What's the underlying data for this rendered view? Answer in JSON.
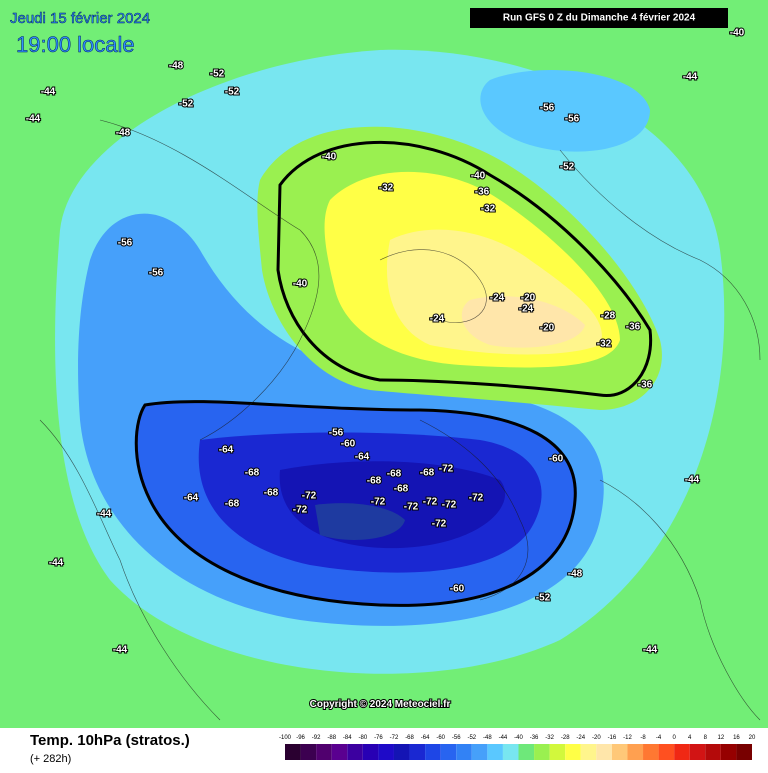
{
  "header": {
    "date": "Jeudi 15 février 2024",
    "time": "19:00 locale",
    "run": "Run GFS 0 Z du Dimanche 4 février 2024"
  },
  "footer": {
    "title": "Temp. 10hPa (stratos.)",
    "lead": "(+ 282h)",
    "copyright": "Copyright © 2024 Meteociel.fr"
  },
  "scale": {
    "labels": [
      -100,
      -96,
      -92,
      -88,
      -84,
      -80,
      -76,
      -72,
      -68,
      -64,
      -60,
      -56,
      -52,
      -48,
      -44,
      -40,
      -36,
      -32,
      -28,
      -24,
      -20,
      -16,
      -12,
      -8,
      -4,
      0,
      4,
      8,
      12,
      16,
      20
    ],
    "colors": [
      "#2a0030",
      "#3c0050",
      "#50006e",
      "#5a0090",
      "#3c00a0",
      "#2800b4",
      "#1e0ac8",
      "#1414b4",
      "#1a28d2",
      "#1e46e6",
      "#2864f0",
      "#3282f5",
      "#46a0fa",
      "#5ac8ff",
      "#78e6f0",
      "#6ee87a",
      "#9af050",
      "#d2f83c",
      "#ffff46",
      "#fff58c",
      "#ffe6aa",
      "#ffc878",
      "#ffa050",
      "#ff7832",
      "#ff5020",
      "#f02814",
      "#d21414",
      "#b40a0a",
      "#960000",
      "#780000"
    ]
  },
  "contour_labels": [
    "-64",
    "-68",
    "-68",
    "-72",
    "-72",
    "-68",
    "-64",
    "-64",
    "-68",
    "-72",
    "-72",
    "-72",
    "-72",
    "-72",
    "-72",
    "-68",
    "-72",
    "-68",
    "-68",
    "-60",
    "-60",
    "-60",
    "-56",
    "-52",
    "-48",
    "-40",
    "-40",
    "-36",
    "-32",
    "-32",
    "-24",
    "-24",
    "-20",
    "-20",
    "-24",
    "-28",
    "-36",
    "-32",
    "-36",
    "-40",
    "-56",
    "-56",
    "-52",
    "-52",
    "-52",
    "-52",
    "-56",
    "-56",
    "-48",
    "-48",
    "-44",
    "-44",
    "-44",
    "-44",
    "-44",
    "-44",
    "-44",
    "-40",
    "-44"
  ]
}
